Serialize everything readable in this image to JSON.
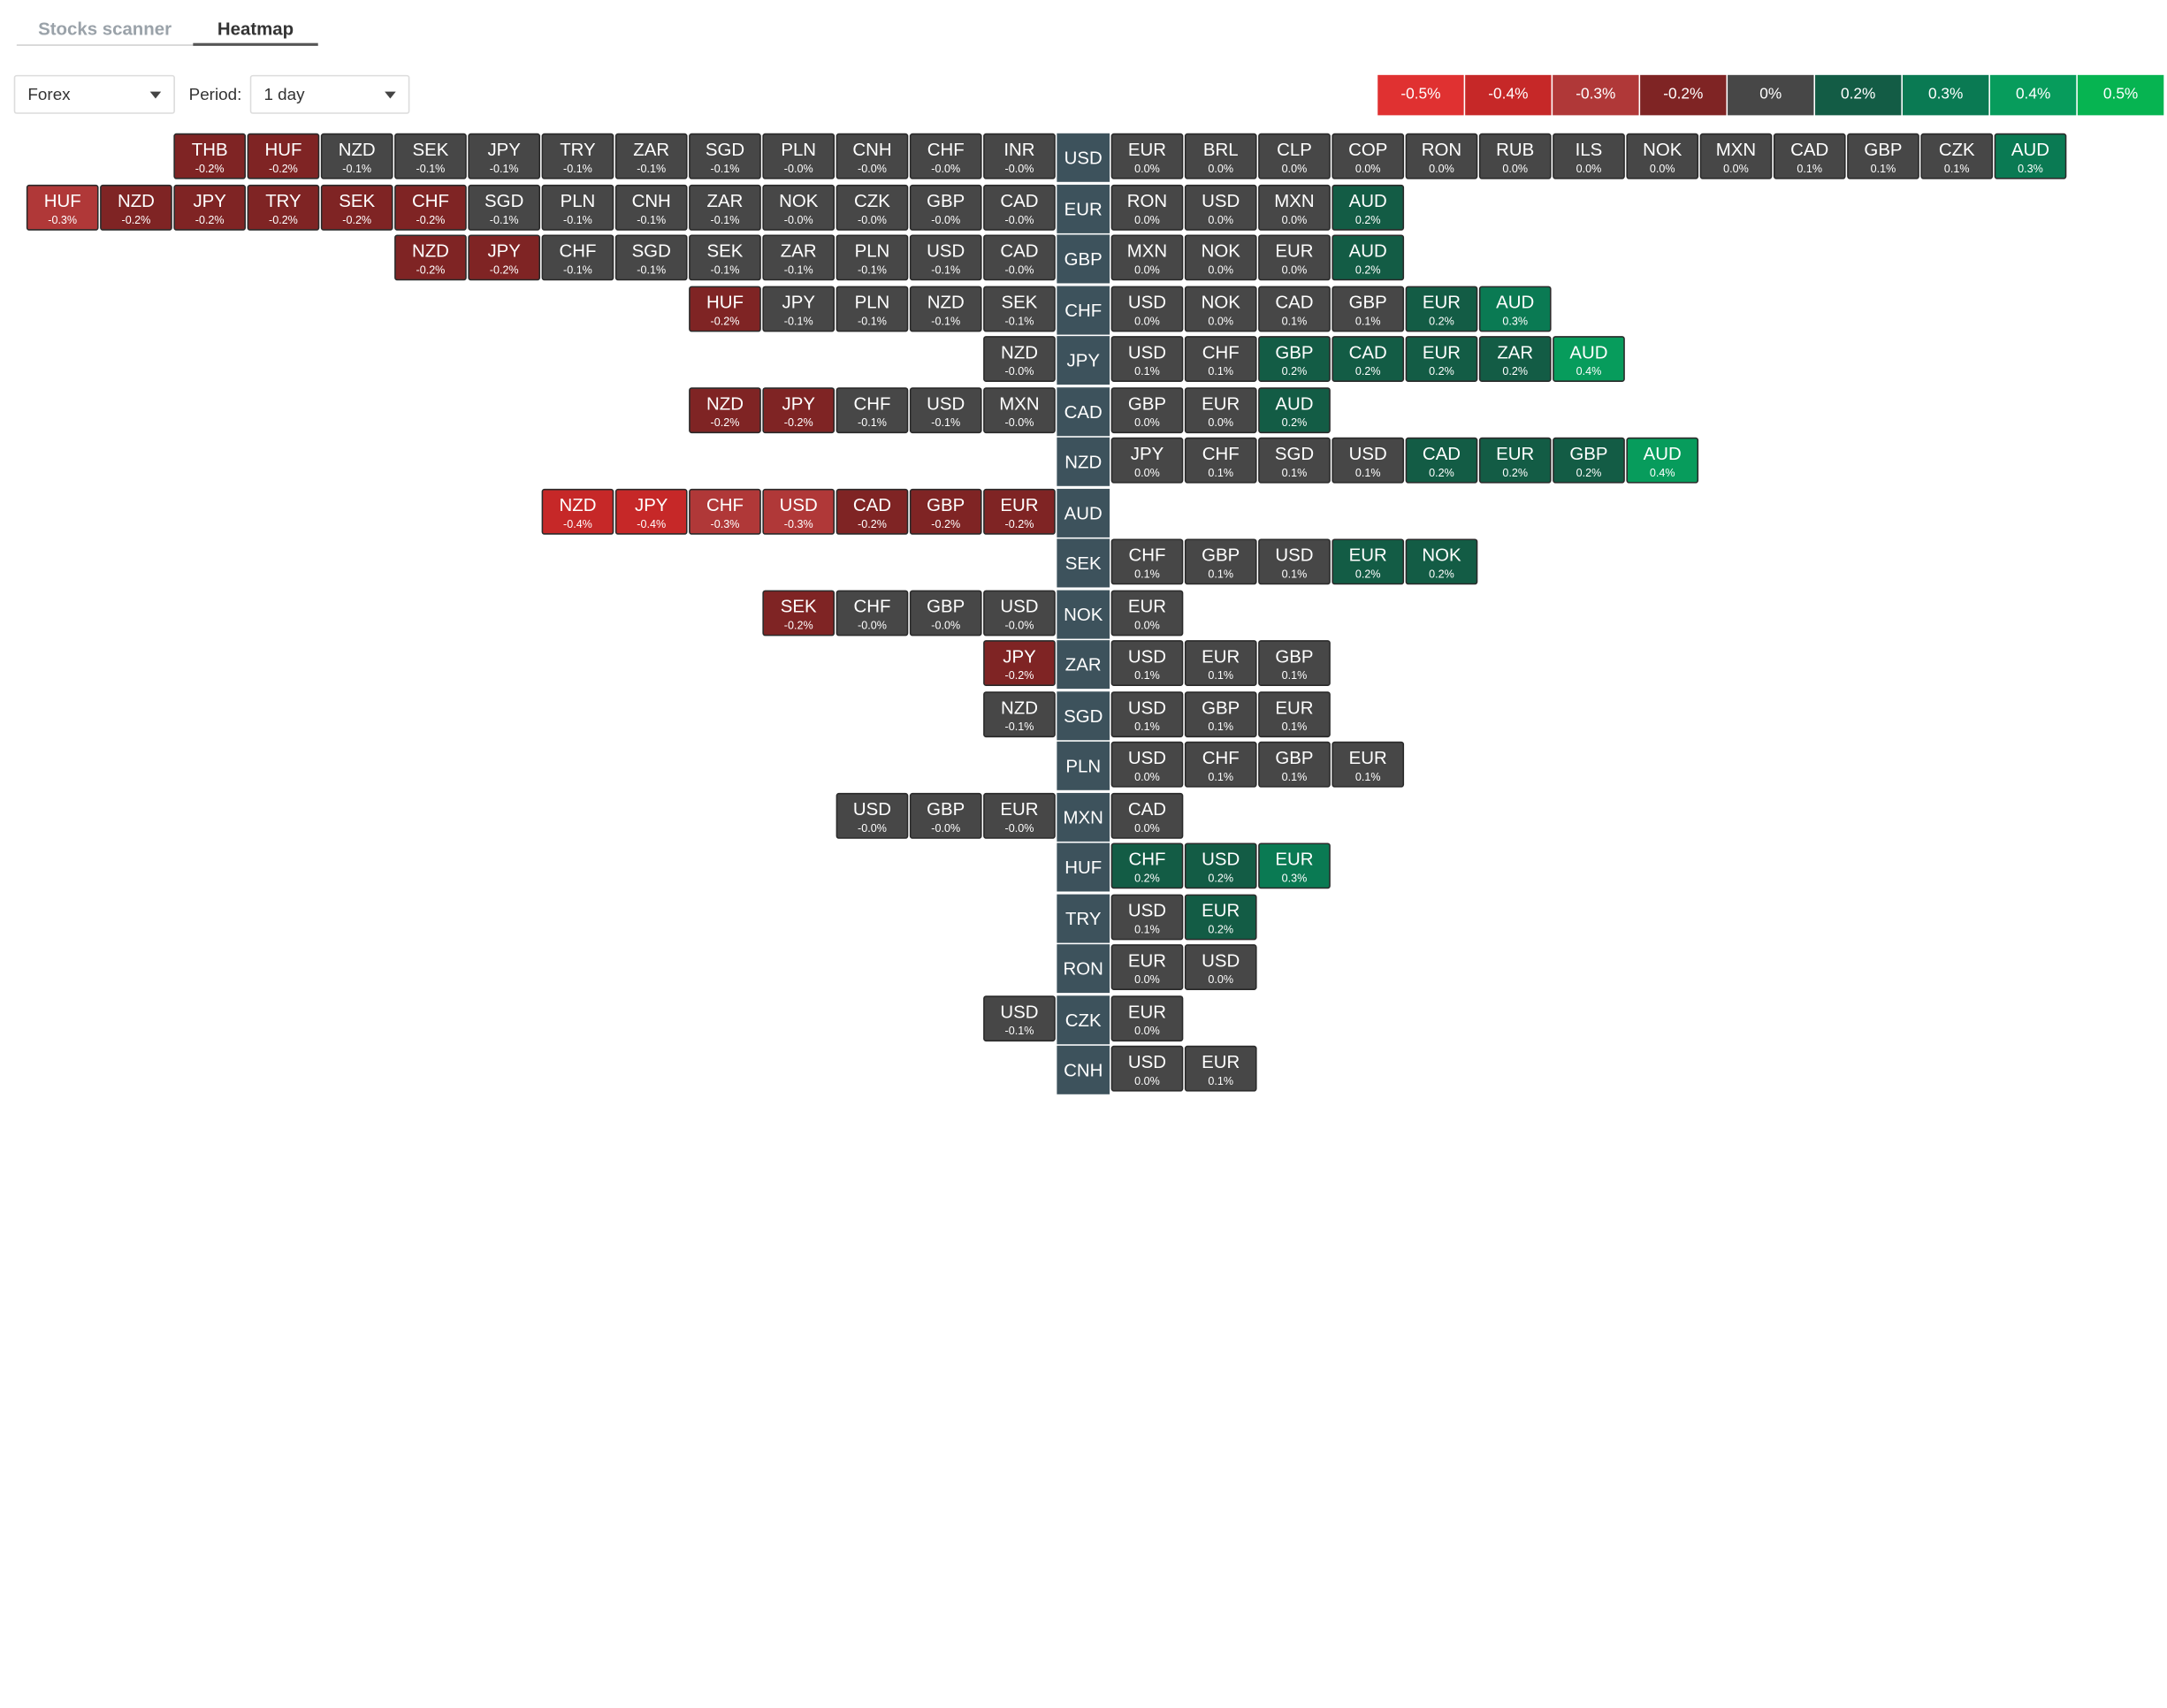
{
  "tabs": [
    {
      "label": "Stocks scanner",
      "active": false
    },
    {
      "label": "Heatmap",
      "active": true
    }
  ],
  "controls": {
    "market": {
      "value": "Forex"
    },
    "period_label": "Period:",
    "period": {
      "value": "1 day"
    }
  },
  "legend": [
    {
      "label": "-0.5%",
      "color": "#e03131"
    },
    {
      "label": "-0.4%",
      "color": "#c62828"
    },
    {
      "label": "-0.3%",
      "color": "#b03838"
    },
    {
      "label": "-0.2%",
      "color": "#7f2424"
    },
    {
      "label": "0%",
      "color": "#474747"
    },
    {
      "label": "0.2%",
      "color": "#135c45"
    },
    {
      "label": "0.3%",
      "color": "#0a7a53"
    },
    {
      "label": "0.4%",
      "color": "#079c5c"
    },
    {
      "label": "0.5%",
      "color": "#06b451"
    }
  ],
  "rows": [
    {
      "base": "USD",
      "left": [
        [
          "THB",
          "-0.2%"
        ],
        [
          "HUF",
          "-0.2%"
        ],
        [
          "NZD",
          "-0.1%"
        ],
        [
          "SEK",
          "-0.1%"
        ],
        [
          "JPY",
          "-0.1%"
        ],
        [
          "TRY",
          "-0.1%"
        ],
        [
          "ZAR",
          "-0.1%"
        ],
        [
          "SGD",
          "-0.1%"
        ],
        [
          "PLN",
          "-0.0%"
        ],
        [
          "CNH",
          "-0.0%"
        ],
        [
          "CHF",
          "-0.0%"
        ],
        [
          "INR",
          "-0.0%"
        ]
      ],
      "right": [
        [
          "EUR",
          "0.0%"
        ],
        [
          "BRL",
          "0.0%"
        ],
        [
          "CLP",
          "0.0%"
        ],
        [
          "COP",
          "0.0%"
        ],
        [
          "RON",
          "0.0%"
        ],
        [
          "RUB",
          "0.0%"
        ],
        [
          "ILS",
          "0.0%"
        ],
        [
          "NOK",
          "0.0%"
        ],
        [
          "MXN",
          "0.0%"
        ],
        [
          "CAD",
          "0.1%"
        ],
        [
          "GBP",
          "0.1%"
        ],
        [
          "CZK",
          "0.1%"
        ],
        [
          "AUD",
          "0.3%"
        ]
      ]
    },
    {
      "base": "EUR",
      "left": [
        [
          "HUF",
          "-0.3%"
        ],
        [
          "NZD",
          "-0.2%"
        ],
        [
          "JPY",
          "-0.2%"
        ],
        [
          "TRY",
          "-0.2%"
        ],
        [
          "SEK",
          "-0.2%"
        ],
        [
          "CHF",
          "-0.2%"
        ],
        [
          "SGD",
          "-0.1%"
        ],
        [
          "PLN",
          "-0.1%"
        ],
        [
          "CNH",
          "-0.1%"
        ],
        [
          "ZAR",
          "-0.1%"
        ],
        [
          "NOK",
          "-0.0%"
        ],
        [
          "CZK",
          "-0.0%"
        ],
        [
          "GBP",
          "-0.0%"
        ],
        [
          "CAD",
          "-0.0%"
        ]
      ],
      "right": [
        [
          "RON",
          "0.0%"
        ],
        [
          "USD",
          "0.0%"
        ],
        [
          "MXN",
          "0.0%"
        ],
        [
          "AUD",
          "0.2%"
        ]
      ]
    },
    {
      "base": "GBP",
      "left": [
        [
          "NZD",
          "-0.2%"
        ],
        [
          "JPY",
          "-0.2%"
        ],
        [
          "CHF",
          "-0.1%"
        ],
        [
          "SGD",
          "-0.1%"
        ],
        [
          "SEK",
          "-0.1%"
        ],
        [
          "ZAR",
          "-0.1%"
        ],
        [
          "PLN",
          "-0.1%"
        ],
        [
          "USD",
          "-0.1%"
        ],
        [
          "CAD",
          "-0.0%"
        ]
      ],
      "right": [
        [
          "MXN",
          "0.0%"
        ],
        [
          "NOK",
          "0.0%"
        ],
        [
          "EUR",
          "0.0%"
        ],
        [
          "AUD",
          "0.2%"
        ]
      ]
    },
    {
      "base": "CHF",
      "left": [
        [
          "HUF",
          "-0.2%"
        ],
        [
          "JPY",
          "-0.1%"
        ],
        [
          "PLN",
          "-0.1%"
        ],
        [
          "NZD",
          "-0.1%"
        ],
        [
          "SEK",
          "-0.1%"
        ]
      ],
      "right": [
        [
          "USD",
          "0.0%"
        ],
        [
          "NOK",
          "0.0%"
        ],
        [
          "CAD",
          "0.1%"
        ],
        [
          "GBP",
          "0.1%"
        ],
        [
          "EUR",
          "0.2%"
        ],
        [
          "AUD",
          "0.3%"
        ]
      ]
    },
    {
      "base": "JPY",
      "left": [
        [
          "NZD",
          "-0.0%"
        ]
      ],
      "right": [
        [
          "USD",
          "0.1%"
        ],
        [
          "CHF",
          "0.1%"
        ],
        [
          "GBP",
          "0.2%"
        ],
        [
          "CAD",
          "0.2%"
        ],
        [
          "EUR",
          "0.2%"
        ],
        [
          "ZAR",
          "0.2%"
        ],
        [
          "AUD",
          "0.4%"
        ]
      ]
    },
    {
      "base": "CAD",
      "left": [
        [
          "NZD",
          "-0.2%"
        ],
        [
          "JPY",
          "-0.2%"
        ],
        [
          "CHF",
          "-0.1%"
        ],
        [
          "USD",
          "-0.1%"
        ],
        [
          "MXN",
          "-0.0%"
        ]
      ],
      "right": [
        [
          "GBP",
          "0.0%"
        ],
        [
          "EUR",
          "0.0%"
        ],
        [
          "AUD",
          "0.2%"
        ]
      ]
    },
    {
      "base": "NZD",
      "left": [],
      "right": [
        [
          "JPY",
          "0.0%"
        ],
        [
          "CHF",
          "0.1%"
        ],
        [
          "SGD",
          "0.1%"
        ],
        [
          "USD",
          "0.1%"
        ],
        [
          "CAD",
          "0.2%"
        ],
        [
          "EUR",
          "0.2%"
        ],
        [
          "GBP",
          "0.2%"
        ],
        [
          "AUD",
          "0.4%"
        ]
      ]
    },
    {
      "base": "AUD",
      "left": [
        [
          "NZD",
          "-0.4%"
        ],
        [
          "JPY",
          "-0.4%"
        ],
        [
          "CHF",
          "-0.3%"
        ],
        [
          "USD",
          "-0.3%"
        ],
        [
          "CAD",
          "-0.2%"
        ],
        [
          "GBP",
          "-0.2%"
        ],
        [
          "EUR",
          "-0.2%"
        ]
      ],
      "right": []
    },
    {
      "base": "SEK",
      "left": [],
      "right": [
        [
          "CHF",
          "0.1%"
        ],
        [
          "GBP",
          "0.1%"
        ],
        [
          "USD",
          "0.1%"
        ],
        [
          "EUR",
          "0.2%"
        ],
        [
          "NOK",
          "0.2%"
        ]
      ]
    },
    {
      "base": "NOK",
      "left": [
        [
          "SEK",
          "-0.2%"
        ],
        [
          "CHF",
          "-0.0%"
        ],
        [
          "GBP",
          "-0.0%"
        ],
        [
          "USD",
          "-0.0%"
        ]
      ],
      "right": [
        [
          "EUR",
          "0.0%"
        ]
      ]
    },
    {
      "base": "ZAR",
      "left": [
        [
          "JPY",
          "-0.2%"
        ]
      ],
      "right": [
        [
          "USD",
          "0.1%"
        ],
        [
          "EUR",
          "0.1%"
        ],
        [
          "GBP",
          "0.1%"
        ]
      ]
    },
    {
      "base": "SGD",
      "left": [
        [
          "NZD",
          "-0.1%"
        ]
      ],
      "right": [
        [
          "USD",
          "0.1%"
        ],
        [
          "GBP",
          "0.1%"
        ],
        [
          "EUR",
          "0.1%"
        ]
      ]
    },
    {
      "base": "PLN",
      "left": [],
      "right": [
        [
          "USD",
          "0.0%"
        ],
        [
          "CHF",
          "0.1%"
        ],
        [
          "GBP",
          "0.1%"
        ],
        [
          "EUR",
          "0.1%"
        ]
      ]
    },
    {
      "base": "MXN",
      "left": [
        [
          "USD",
          "-0.0%"
        ],
        [
          "GBP",
          "-0.0%"
        ],
        [
          "EUR",
          "-0.0%"
        ]
      ],
      "right": [
        [
          "CAD",
          "0.0%"
        ]
      ]
    },
    {
      "base": "HUF",
      "left": [],
      "right": [
        [
          "CHF",
          "0.2%"
        ],
        [
          "USD",
          "0.2%"
        ],
        [
          "EUR",
          "0.3%"
        ]
      ]
    },
    {
      "base": "TRY",
      "left": [],
      "right": [
        [
          "USD",
          "0.1%"
        ],
        [
          "EUR",
          "0.2%"
        ]
      ]
    },
    {
      "base": "RON",
      "left": [],
      "right": [
        [
          "EUR",
          "0.0%"
        ],
        [
          "USD",
          "0.0%"
        ]
      ]
    },
    {
      "base": "CZK",
      "left": [
        [
          "USD",
          "-0.1%"
        ]
      ],
      "right": [
        [
          "EUR",
          "0.0%"
        ]
      ]
    },
    {
      "base": "CNH",
      "left": [],
      "right": [
        [
          "USD",
          "0.0%"
        ],
        [
          "EUR",
          "0.1%"
        ]
      ]
    }
  ]
}
